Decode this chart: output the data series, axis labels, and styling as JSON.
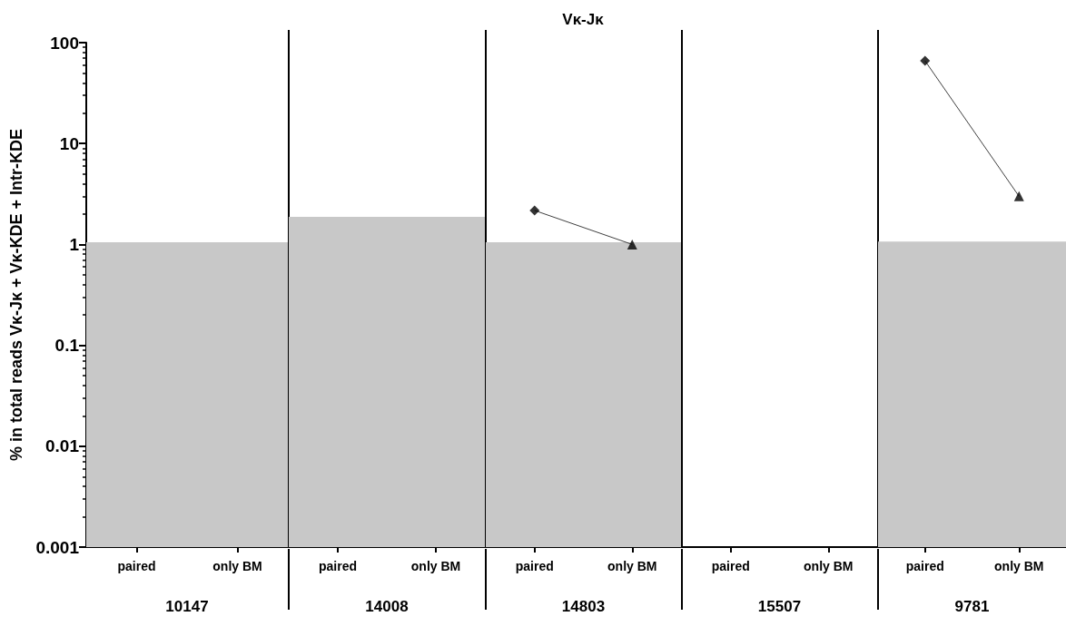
{
  "chart_data": [
    {
      "type": "line",
      "ylabel": "% in total reads Vκ-Jκ + Vκ-KDE + Intr-KDE",
      "xlabel": "10147",
      "categories": [
        "paired",
        "only BM"
      ],
      "log": true,
      "ylim": [
        0.001,
        100
      ],
      "yticks": [
        0.001,
        0.01,
        0.1,
        1,
        10,
        100
      ],
      "bands": [
        {
          "axis": "y",
          "from": 0.001,
          "to": 1.05,
          "color": "#c8c8c8"
        }
      ]
    },
    {
      "type": "line",
      "xlabel": "14008",
      "categories": [
        "paired",
        "only BM"
      ],
      "log": true,
      "ylim": [
        0.001,
        100
      ],
      "yticks": [
        0.001,
        0.01,
        0.1,
        1,
        10,
        100
      ],
      "tick_labels": "x",
      "bands": [
        {
          "axis": "y",
          "from": 0.001,
          "to": 1.88,
          "color": "#c8c8c8"
        }
      ]
    },
    {
      "type": "line",
      "title": "Vκ-Jκ",
      "xlabel": "14803",
      "categories": [
        "paired",
        "only BM"
      ],
      "log": true,
      "ylim": [
        0.001,
        100
      ],
      "yticks": [
        0.001,
        0.01,
        0.1,
        1,
        10,
        100
      ],
      "tick_labels": "x",
      "bands": [
        {
          "axis": "y",
          "from": 0.001,
          "to": 1.05,
          "color": "#c8c8c8"
        }
      ],
      "series": [
        {
          "type": "line",
          "color": "#404040",
          "marker": "none",
          "values": [
            2.17,
            1.0
          ]
        },
        {
          "type": "scatter",
          "color": "#000000",
          "marker": "diamond",
          "x": [
            "paired"
          ],
          "values": [
            2.17
          ]
        },
        {
          "type": "scatter",
          "color": "#000000",
          "marker": "triangle",
          "x": [
            "only BM"
          ],
          "values": [
            1.0
          ]
        }
      ]
    },
    {
      "type": "line",
      "xlabel": "15507",
      "categories": [
        "paired",
        "only BM"
      ],
      "log": true,
      "ylim": [
        0.001,
        100
      ],
      "yticks": [
        0.001,
        0.01,
        0.1,
        1,
        10,
        100
      ],
      "tick_labels": "x"
    },
    {
      "type": "line",
      "xlabel": "9781",
      "categories": [
        "paired",
        "only BM"
      ],
      "log": true,
      "ylim": [
        0.001,
        100
      ],
      "yticks": [
        0.001,
        0.01,
        0.1,
        1,
        10,
        100
      ],
      "tick_labels": "x",
      "bands": [
        {
          "axis": "y",
          "from": 0.001,
          "to": 1.07,
          "color": "#c8c8c8"
        }
      ],
      "series": [
        {
          "type": "line",
          "color": "#404040",
          "marker": "none",
          "values": [
            66,
            3.0
          ]
        },
        {
          "type": "scatter",
          "color": "#000000",
          "marker": "diamond",
          "x": [
            "paired"
          ],
          "values": [
            66
          ]
        },
        {
          "type": "scatter",
          "color": "#000000",
          "marker": "triangle",
          "x": [
            "only BM"
          ],
          "values": [
            3.0
          ]
        }
      ]
    }
  ]
}
